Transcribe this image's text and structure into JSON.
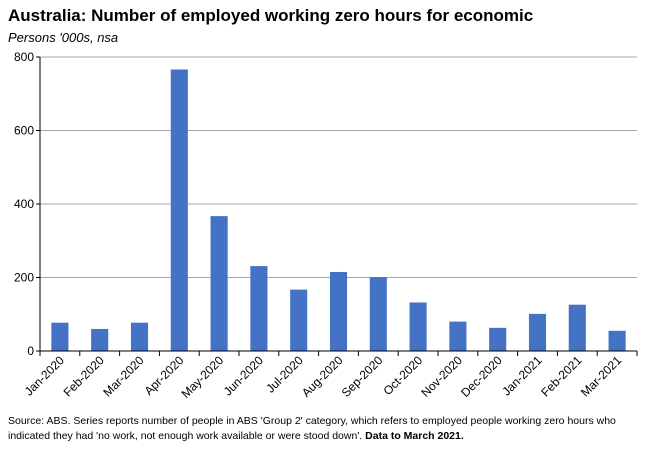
{
  "title": "Australia: Number of employed working zero hours for economic",
  "subtitle": "Persons '000s, nsa",
  "source": {
    "text": "Source: ABS.  Series reports number of people in ABS 'Group 2' category, which  refers to employed people working zero hours who indicated they had 'no work, not enough work available or were stood down'.",
    "bold_text": "Data to March  2021."
  },
  "colors": {
    "bar": "#4472c4",
    "grid": "#a6a6a6",
    "axis": "#000000"
  },
  "chart_data": {
    "type": "bar",
    "title": "Australia: Number of employed working zero hours for economic",
    "subtitle": "Persons '000s, nsa",
    "xlabel": "",
    "ylabel": "",
    "ylim": [
      0,
      800
    ],
    "yticks": [
      0,
      200,
      400,
      600,
      800
    ],
    "grid": true,
    "legend": "none",
    "categories": [
      "Jan-2020",
      "Feb-2020",
      "Mar-2020",
      "Apr-2020",
      "May-2020",
      "Jun-2020",
      "Jul-2020",
      "Aug-2020",
      "Sep-2020",
      "Oct-2020",
      "Nov-2020",
      "Dec-2020",
      "Jan-2021",
      "Feb-2021",
      "Mar-2021"
    ],
    "values": [
      77,
      60,
      77,
      766,
      367,
      231,
      167,
      215,
      201,
      132,
      80,
      63,
      101,
      126,
      55
    ]
  }
}
